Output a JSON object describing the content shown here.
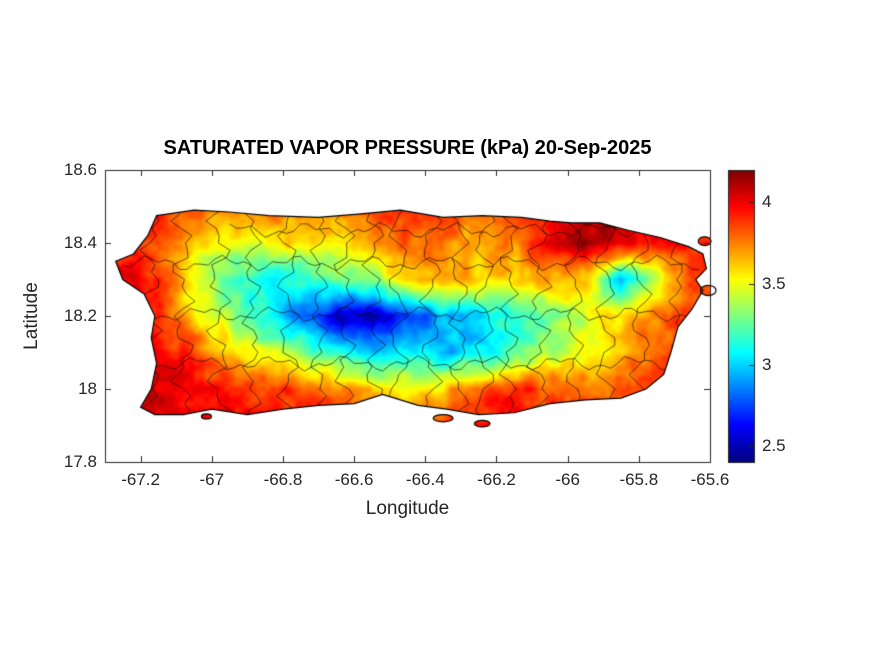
{
  "chart_data": {
    "type": "heatmap",
    "title": "SATURATED VAPOR PRESSURE (kPa) 20-Sep-2025",
    "xlabel": "Longitude",
    "ylabel": "Latitude",
    "region": "Puerto Rico with municipality boundaries",
    "units": "kPa",
    "colormap": "jet",
    "xlim": [
      -67.3,
      -65.6
    ],
    "ylim": [
      17.8,
      18.6
    ],
    "clim": [
      2.4,
      4.2
    ],
    "x_ticks": [
      -67.2,
      -67,
      -66.8,
      -66.6,
      -66.4,
      -66.2,
      -66,
      -65.8,
      -65.6
    ],
    "x_tick_labels": [
      "-67.2",
      "-67",
      "-66.8",
      "-66.6",
      "-66.4",
      "-66.2",
      "-66",
      "-65.8",
      "-65.6"
    ],
    "y_ticks": [
      17.8,
      18,
      18.2,
      18.4,
      18.6
    ],
    "y_tick_labels": [
      "17.8",
      "18",
      "18.2",
      "18.4",
      "18.6"
    ],
    "colorbar_ticks": [
      2.5,
      3,
      3.5,
      4
    ],
    "colorbar_tick_labels": [
      "2.5",
      "3",
      "3.5",
      "4"
    ],
    "grid_lon": [
      -67.25,
      -67.15,
      -67.05,
      -66.95,
      -66.85,
      -66.75,
      -66.65,
      -66.55,
      -66.45,
      -66.35,
      -66.25,
      -66.15,
      -66.05,
      -65.95,
      -65.85,
      -65.75,
      -65.65,
      -65.55
    ],
    "grid_lat": [
      17.9,
      18.0,
      18.1,
      18.2,
      18.3,
      18.4,
      18.5
    ],
    "grid_values_south_to_north": [
      [
        4.0,
        4.05,
        4.0,
        3.95,
        3.95,
        3.95,
        3.9,
        3.85,
        3.85,
        3.9,
        3.95,
        3.95,
        3.95,
        3.9,
        3.9,
        3.9,
        3.85,
        3.85
      ],
      [
        4.05,
        4.05,
        4.0,
        3.95,
        3.9,
        3.85,
        3.75,
        3.6,
        3.55,
        3.6,
        3.8,
        3.9,
        3.85,
        3.8,
        3.8,
        3.85,
        3.85,
        3.85
      ],
      [
        4.05,
        4.0,
        3.85,
        3.6,
        3.45,
        3.3,
        3.1,
        2.95,
        3.05,
        2.95,
        3.0,
        3.2,
        3.35,
        3.5,
        3.65,
        3.8,
        3.9,
        3.9
      ],
      [
        3.95,
        3.9,
        3.6,
        3.35,
        3.1,
        2.85,
        2.55,
        2.45,
        2.7,
        2.9,
        3.0,
        3.15,
        3.3,
        3.45,
        3.6,
        3.75,
        3.9,
        3.95
      ],
      [
        4.0,
        3.9,
        3.5,
        3.2,
        3.05,
        3.1,
        3.3,
        3.35,
        3.6,
        3.7,
        3.6,
        3.6,
        3.7,
        3.6,
        2.95,
        3.4,
        3.85,
        3.9
      ],
      [
        3.9,
        3.85,
        3.6,
        3.5,
        3.55,
        3.6,
        3.5,
        3.65,
        3.8,
        3.75,
        3.65,
        3.75,
        4.0,
        4.15,
        4.1,
        3.95,
        3.9,
        3.85
      ],
      [
        3.85,
        3.9,
        3.85,
        3.8,
        3.75,
        3.8,
        3.85,
        3.9,
        3.95,
        3.85,
        3.8,
        3.85,
        4.0,
        4.1,
        4.05,
        3.95,
        3.9,
        3.85
      ]
    ],
    "coastline": [
      [
        -67.155,
        18.475
      ],
      [
        -67.05,
        18.49
      ],
      [
        -66.95,
        18.485
      ],
      [
        -66.84,
        18.475
      ],
      [
        -66.7,
        18.47
      ],
      [
        -66.58,
        18.48
      ],
      [
        -66.47,
        18.49
      ],
      [
        -66.35,
        18.47
      ],
      [
        -66.24,
        18.475
      ],
      [
        -66.13,
        18.47
      ],
      [
        -66.05,
        18.46
      ],
      [
        -65.99,
        18.455
      ],
      [
        -65.91,
        18.455
      ],
      [
        -65.83,
        18.435
      ],
      [
        -65.74,
        18.415
      ],
      [
        -65.66,
        18.39
      ],
      [
        -65.62,
        18.37
      ],
      [
        -65.61,
        18.33
      ],
      [
        -65.64,
        18.3
      ],
      [
        -65.62,
        18.27
      ],
      [
        -65.65,
        18.22
      ],
      [
        -65.69,
        18.17
      ],
      [
        -65.71,
        18.1
      ],
      [
        -65.73,
        18.04
      ],
      [
        -65.78,
        18.0
      ],
      [
        -65.85,
        17.975
      ],
      [
        -65.95,
        17.97
      ],
      [
        -66.05,
        17.96
      ],
      [
        -66.15,
        17.935
      ],
      [
        -66.25,
        17.93
      ],
      [
        -66.34,
        17.945
      ],
      [
        -66.42,
        17.955
      ],
      [
        -66.52,
        17.985
      ],
      [
        -66.6,
        17.96
      ],
      [
        -66.7,
        17.955
      ],
      [
        -66.8,
        17.945
      ],
      [
        -66.9,
        17.93
      ],
      [
        -67.0,
        17.945
      ],
      [
        -67.08,
        17.93
      ],
      [
        -67.16,
        17.93
      ],
      [
        -67.2,
        17.95
      ],
      [
        -67.17,
        18.0
      ],
      [
        -67.155,
        18.07
      ],
      [
        -67.17,
        18.14
      ],
      [
        -67.16,
        18.2
      ],
      [
        -67.19,
        18.26
      ],
      [
        -67.25,
        18.3
      ],
      [
        -67.27,
        18.35
      ],
      [
        -67.22,
        18.37
      ],
      [
        -67.18,
        18.42
      ]
    ],
    "islets": [
      [
        -66.35,
        17.92,
        0.028,
        0.01
      ],
      [
        -66.24,
        17.905,
        0.022,
        0.009
      ],
      [
        -67.015,
        17.925,
        0.014,
        0.007
      ],
      [
        -65.615,
        18.405,
        0.018,
        0.012
      ],
      [
        -65.605,
        18.27,
        0.022,
        0.014
      ]
    ],
    "colors": {
      "background": "#ffffff",
      "coastline": "#000000",
      "municipal_boundaries": "#000000",
      "axis_text": "#262626",
      "title_text": "#000000"
    },
    "legend_position": "colorbar-right",
    "grid": false
  }
}
